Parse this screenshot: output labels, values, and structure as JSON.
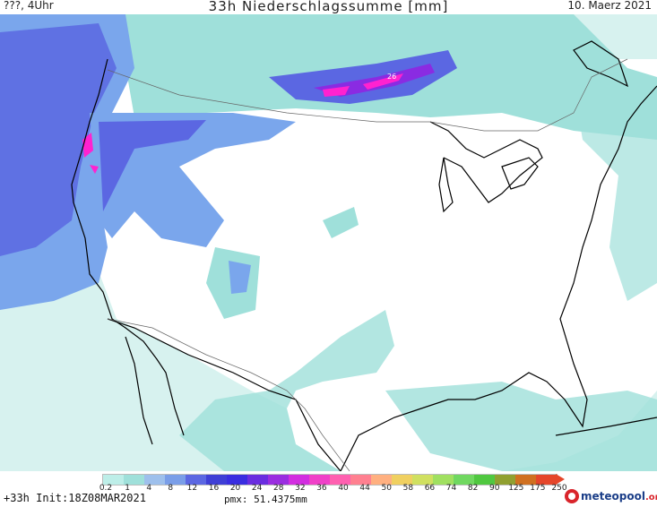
{
  "header": {
    "left": "???, 4Uhr",
    "title": "33h Niederschlagssumme [mm]",
    "date": "10. Maerz 2021"
  },
  "map": {
    "peak_label": "26",
    "colors": {
      "ocean": "#d7f2ef",
      "light": "#9fe0da",
      "mid": "#7aa6ec",
      "blue": "#5b67e2",
      "deep": "#3f3fd6",
      "purple": "#8a2be2",
      "magenta": "#ff22d0"
    }
  },
  "legend": {
    "ticks": [
      "0.2",
      "1",
      "4",
      "8",
      "12",
      "16",
      "20",
      "24",
      "28",
      "32",
      "36",
      "40",
      "44",
      "50",
      "58",
      "66",
      "74",
      "82",
      "90",
      "125",
      "175",
      "250"
    ],
    "colors": [
      "#bdeee8",
      "#9fe0da",
      "#9ec0ec",
      "#7a9ee8",
      "#5b67e2",
      "#3f3fd6",
      "#3a2ee0",
      "#6a2ee0",
      "#9a2ee0",
      "#d22ee0",
      "#f040c8",
      "#ff60b0",
      "#ff8090",
      "#ffb080",
      "#f0d060",
      "#d0e060",
      "#a0e060",
      "#70d860",
      "#50c840",
      "#90a030",
      "#d07020",
      "#e5462a"
    ]
  },
  "footer": {
    "run": "+33h Init:18Z08MAR2021",
    "pmx": "pmx: 51.4375mm",
    "logo_main": "meteopool",
    "logo_tld": ".org"
  }
}
